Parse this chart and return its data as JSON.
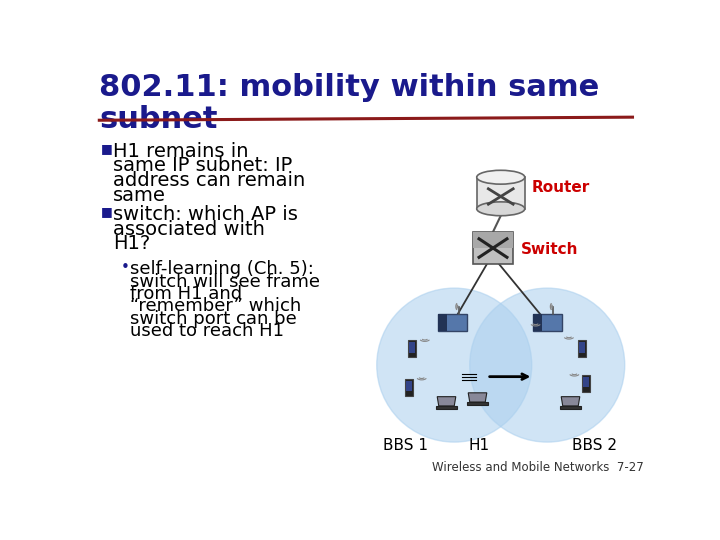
{
  "title_line1": "802.11: mobility within same",
  "title_line2": "subnet",
  "title_color": "#1a1a8c",
  "title_fontsize": 22,
  "underline_color": "#8b1a1a",
  "bullet1_line1": "H1 remains in",
  "bullet1_line2": "same IP subnet: IP",
  "bullet1_line3": "address can remain",
  "bullet1_line4": "same",
  "bullet2_line1": "switch: which AP is",
  "bullet2_line2": "associated with",
  "bullet2_line3": "H1?",
  "sub_line1": "self-learning (Ch. 5):",
  "sub_line2": "switch will see frame",
  "sub_line3": "from H1 and",
  "sub_line4": "“remember” which",
  "sub_line5": "switch port can be",
  "sub_line6": "used to reach H1",
  "bullet_color": "#000000",
  "bullet_sq_color": "#1a1a8c",
  "sub_bullet_color": "#1a1a8c",
  "bullet_fontsize": 14,
  "sub_fontsize": 13,
  "router_label": "Router",
  "switch_label": "Switch",
  "label_color": "#cc0000",
  "bbs1_label": "BBS 1",
  "bbs2_label": "BBS 2",
  "h1_label": "H1",
  "circle_color": "#aacfee",
  "circle_alpha": 0.55,
  "background_color": "#ffffff",
  "footer": "Wireless and Mobile Networks  7-27"
}
